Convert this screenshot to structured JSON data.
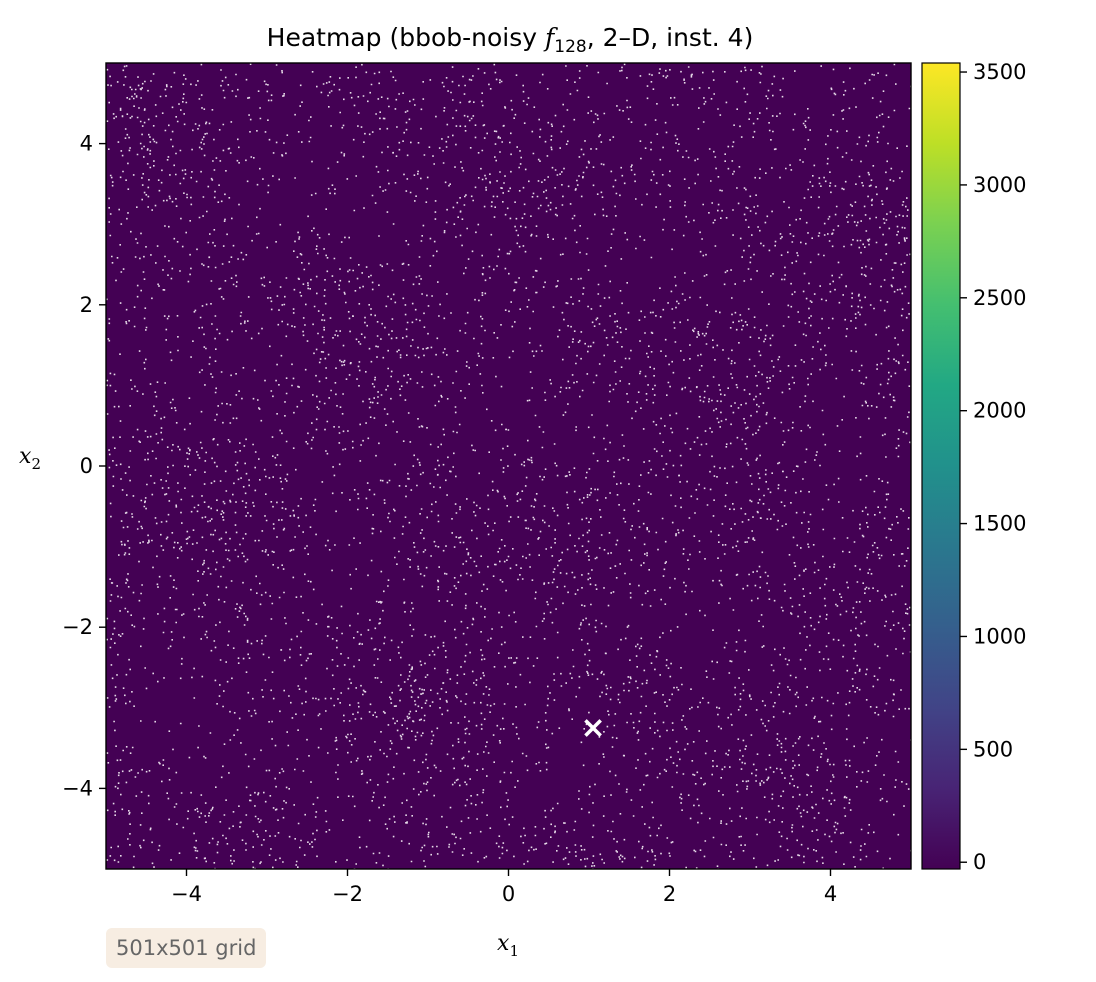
{
  "chart_data": {
    "type": "heatmap",
    "title_prefix": "Heatmap (bbob-noisy ",
    "title_f": "f",
    "title_sub": "128",
    "title_suffix": ", 2–D, inst. 4)",
    "xlabel": "x",
    "xlabel_sub": "1",
    "ylabel": "x",
    "ylabel_sub": "2",
    "xlim": [
      -5,
      5
    ],
    "ylim": [
      -5,
      5
    ],
    "x_ticks": [
      -4,
      -2,
      0,
      2,
      4
    ],
    "y_ticks": [
      -4,
      -2,
      0,
      2,
      4
    ],
    "x_tick_labels": [
      "−4",
      "−2",
      "0",
      "2",
      "4"
    ],
    "y_tick_labels": [
      "−4",
      "−2",
      "0",
      "2",
      "4"
    ],
    "colorbar": {
      "colormap": "viridis",
      "range": [
        -30,
        3540
      ],
      "ticks": [
        0,
        500,
        1000,
        1500,
        2000,
        2500,
        3000,
        3500
      ],
      "tick_labels": [
        "0",
        "500",
        "1000",
        "1500",
        "2000",
        "2500",
        "3000",
        "3500"
      ]
    },
    "optimum_marker": {
      "x": 1.05,
      "y": -3.25,
      "symbol": "×",
      "color": "#ffffff"
    },
    "grid_size": "501x501",
    "background_color": "#440154",
    "noise_color": "#e6dbe8"
  },
  "annotation": {
    "text": "501x501 grid"
  }
}
